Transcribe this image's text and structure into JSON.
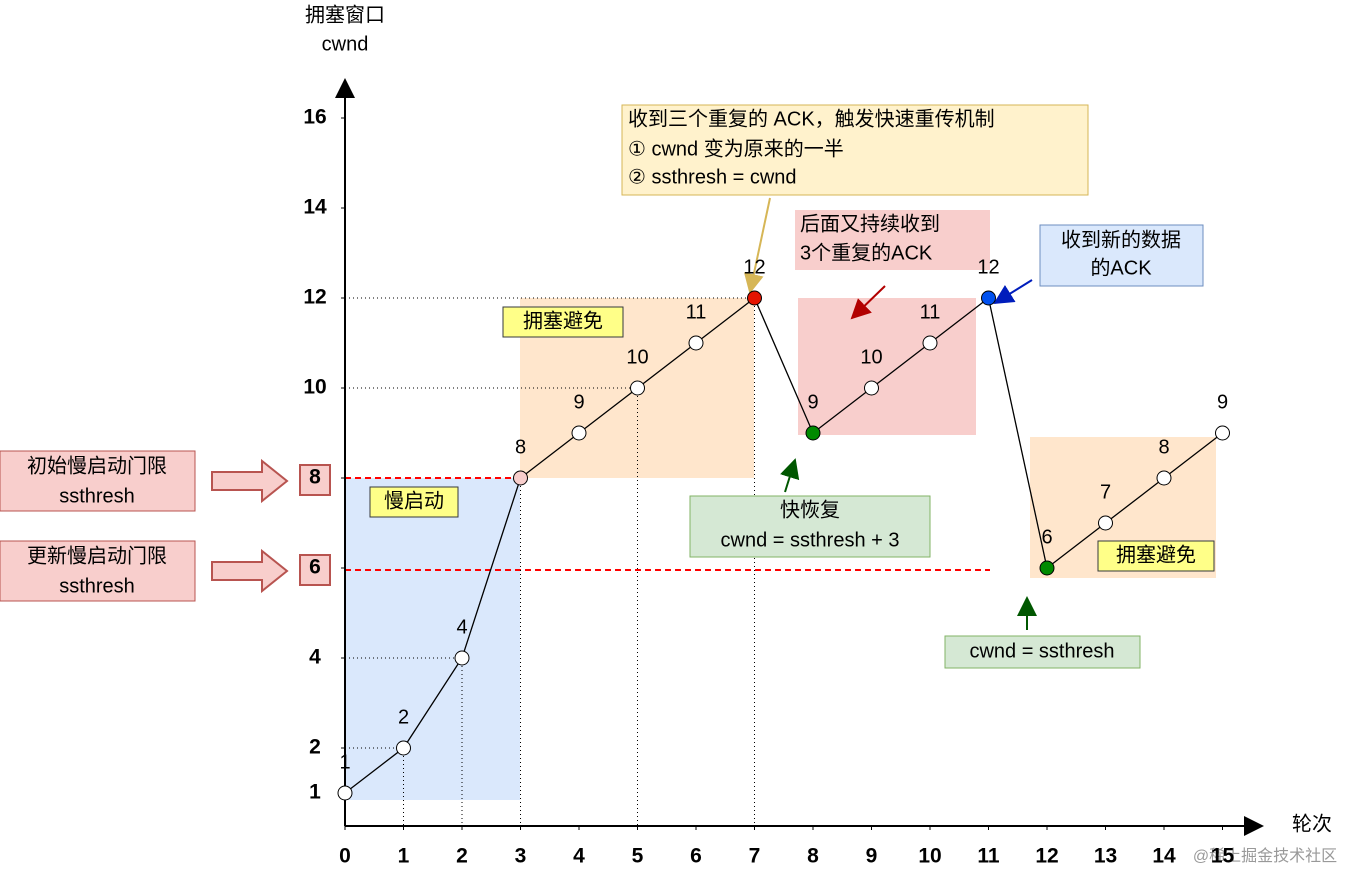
{
  "chart_data": {
    "type": "line",
    "y_axis_label": [
      "拥塞窗口",
      "cwnd"
    ],
    "x_axis_label": "轮次",
    "x": [
      0,
      1,
      2,
      3,
      4,
      5,
      6,
      7,
      8,
      9,
      10,
      11,
      12,
      13,
      14,
      15
    ],
    "series": [
      {
        "color": "#000000",
        "values": [
          1,
          2,
          4,
          8,
          9,
          10,
          11,
          12,
          9,
          10,
          11,
          12,
          6,
          7,
          8,
          9
        ],
        "point_colors": [
          "#ffffff",
          "#ffffff",
          "#ffffff",
          "#f8cecc",
          "#ffffff",
          "#ffffff",
          "#ffffff",
          "#e51400",
          "#008a00",
          "#ffffff",
          "#ffffff",
          "#0050ef",
          "#008a00",
          "#ffffff",
          "#ffffff",
          "#ffffff"
        ]
      }
    ],
    "xlim": [
      0,
      15
    ],
    "ylim": [
      0,
      16
    ],
    "xticks": [
      0,
      1,
      2,
      3,
      4,
      5,
      6,
      7,
      8,
      9,
      10,
      11,
      12,
      13,
      14,
      15
    ],
    "yticks": [
      1,
      2,
      4,
      6,
      8,
      10,
      12,
      14,
      16
    ],
    "regions": [
      "慢启动",
      "拥塞避免",
      "拥塞避免"
    ],
    "annotations": {
      "fast_retransmit": [
        "收到三个重复的 ACK，触发快速重传机制",
        "① cwnd 变为原来的一半",
        "② ssthresh = cwnd"
      ],
      "repeat_ack": [
        "后面又持续收到",
        "3个重复的ACK"
      ],
      "new_ack": [
        "收到新的数据",
        "的ACK"
      ],
      "fast_recovery": [
        "快恢复",
        "cwnd = ssthresh + 3"
      ],
      "reset": "cwnd = ssthresh",
      "initial_threshold": [
        "初始慢启动门限",
        "ssthresh"
      ],
      "updated_threshold": [
        "更新慢启动门限",
        "ssthresh"
      ]
    },
    "watermark": "@稀土掘金技术社区"
  }
}
